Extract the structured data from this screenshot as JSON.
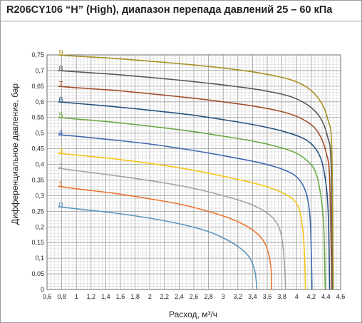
{
  "title": "R206CY106 “H” (High), диапазон перепада давлений 25 – 60 кПа",
  "chart_data": {
    "type": "line",
    "title": "R206CY106 “H” (High), диапазон перепада давлений 25 – 60 кПа",
    "xlabel": "Расход, м³/ч",
    "ylabel": "Дифференциальное давление, бар",
    "xlim": [
      0.6,
      4.6
    ],
    "ylim": [
      0,
      0.75
    ],
    "x_ticks": [
      "0,6",
      "0,8",
      "1",
      "1,2",
      "1,4",
      "1,6",
      "1,8",
      "2",
      "2,2",
      "2,4",
      "2,6",
      "2,8",
      "3",
      "3,2",
      "3,4",
      "3,6",
      "3,8",
      "4",
      "4,2",
      "4,4",
      "4,6"
    ],
    "y_ticks": [
      "0",
      "0,05",
      "0,1",
      "0,15",
      "0,2",
      "0,25",
      "0,3",
      "0,35",
      "0,4",
      "0,45",
      "0,5",
      "0,55",
      "0,6",
      "0,65",
      "0,7",
      "0,75"
    ],
    "grid": true,
    "series": [
      {
        "name": "0",
        "color": "#5b95bd",
        "points": [
          [
            0.75,
            0.265
          ],
          [
            1.0,
            0.258
          ],
          [
            1.5,
            0.245
          ],
          [
            2.0,
            0.228
          ],
          [
            2.5,
            0.205
          ],
          [
            2.8,
            0.185
          ],
          [
            3.0,
            0.165
          ],
          [
            3.2,
            0.138
          ],
          [
            3.35,
            0.105
          ],
          [
            3.43,
            0.06
          ],
          [
            3.46,
            0.0
          ]
        ]
      },
      {
        "name": "1",
        "color": "#ec7530",
        "points": [
          [
            0.75,
            0.33
          ],
          [
            1.0,
            0.322
          ],
          [
            1.5,
            0.308
          ],
          [
            2.0,
            0.29
          ],
          [
            2.5,
            0.268
          ],
          [
            3.0,
            0.235
          ],
          [
            3.3,
            0.205
          ],
          [
            3.5,
            0.17
          ],
          [
            3.6,
            0.13
          ],
          [
            3.65,
            0.07
          ],
          [
            3.66,
            0.0
          ]
        ]
      },
      {
        "name": "2",
        "color": "#a3a3a3",
        "points": [
          [
            0.75,
            0.388
          ],
          [
            1.0,
            0.38
          ],
          [
            1.5,
            0.365
          ],
          [
            2.0,
            0.348
          ],
          [
            2.5,
            0.328
          ],
          [
            3.0,
            0.3
          ],
          [
            3.4,
            0.27
          ],
          [
            3.65,
            0.235
          ],
          [
            3.78,
            0.185
          ],
          [
            3.83,
            0.1
          ],
          [
            3.85,
            0.0
          ]
        ]
      },
      {
        "name": "3",
        "color": "#f5c518",
        "points": [
          [
            0.75,
            0.435
          ],
          [
            1.0,
            0.43
          ],
          [
            1.5,
            0.418
          ],
          [
            2.0,
            0.403
          ],
          [
            2.5,
            0.385
          ],
          [
            3.0,
            0.362
          ],
          [
            3.5,
            0.335
          ],
          [
            3.8,
            0.31
          ],
          [
            4.0,
            0.275
          ],
          [
            4.08,
            0.2
          ],
          [
            4.11,
            0.1
          ],
          [
            4.12,
            0.0
          ]
        ]
      },
      {
        "name": "4",
        "color": "#3f68b0",
        "points": [
          [
            0.75,
            0.495
          ],
          [
            1.0,
            0.49
          ],
          [
            1.5,
            0.478
          ],
          [
            2.0,
            0.465
          ],
          [
            2.5,
            0.448
          ],
          [
            3.0,
            0.428
          ],
          [
            3.5,
            0.405
          ],
          [
            3.8,
            0.385
          ],
          [
            4.0,
            0.36
          ],
          [
            4.12,
            0.315
          ],
          [
            4.18,
            0.24
          ],
          [
            4.2,
            0.12
          ],
          [
            4.21,
            0.0
          ]
        ]
      },
      {
        "name": "5",
        "color": "#6aaa45",
        "points": [
          [
            0.75,
            0.55
          ],
          [
            1.0,
            0.545
          ],
          [
            1.5,
            0.535
          ],
          [
            2.0,
            0.522
          ],
          [
            2.5,
            0.508
          ],
          [
            3.0,
            0.49
          ],
          [
            3.5,
            0.47
          ],
          [
            3.9,
            0.445
          ],
          [
            4.1,
            0.42
          ],
          [
            4.25,
            0.38
          ],
          [
            4.33,
            0.3
          ],
          [
            4.37,
            0.2
          ],
          [
            4.39,
            0.0
          ]
        ]
      },
      {
        "name": "6",
        "color": "#25527d",
        "points": [
          [
            0.75,
            0.6
          ],
          [
            1.0,
            0.595
          ],
          [
            1.5,
            0.585
          ],
          [
            2.0,
            0.573
          ],
          [
            2.5,
            0.56
          ],
          [
            3.0,
            0.543
          ],
          [
            3.5,
            0.523
          ],
          [
            3.9,
            0.5
          ],
          [
            4.15,
            0.475
          ],
          [
            4.3,
            0.435
          ],
          [
            4.38,
            0.37
          ],
          [
            4.43,
            0.25
          ],
          [
            4.45,
            0.0
          ]
        ]
      },
      {
        "name": "7",
        "color": "#a24f2a",
        "points": [
          [
            0.75,
            0.65
          ],
          [
            1.0,
            0.645
          ],
          [
            1.5,
            0.637
          ],
          [
            2.0,
            0.626
          ],
          [
            2.5,
            0.614
          ],
          [
            3.0,
            0.6
          ],
          [
            3.5,
            0.583
          ],
          [
            3.9,
            0.562
          ],
          [
            4.15,
            0.535
          ],
          [
            4.3,
            0.5
          ],
          [
            4.4,
            0.44
          ],
          [
            4.45,
            0.35
          ],
          [
            4.48,
            0.0
          ]
        ]
      },
      {
        "name": "8",
        "color": "#5a5a5a",
        "points": [
          [
            0.75,
            0.7
          ],
          [
            1.0,
            0.696
          ],
          [
            1.5,
            0.688
          ],
          [
            2.0,
            0.678
          ],
          [
            2.5,
            0.667
          ],
          [
            3.0,
            0.654
          ],
          [
            3.5,
            0.638
          ],
          [
            3.9,
            0.618
          ],
          [
            4.15,
            0.59
          ],
          [
            4.32,
            0.55
          ],
          [
            4.42,
            0.49
          ],
          [
            4.47,
            0.4
          ],
          [
            4.49,
            0.0
          ]
        ]
      },
      {
        "name": "9",
        "color": "#a99122",
        "points": [
          [
            0.75,
            0.75
          ],
          [
            1.0,
            0.746
          ],
          [
            1.5,
            0.739
          ],
          [
            2.0,
            0.73
          ],
          [
            2.5,
            0.72
          ],
          [
            3.0,
            0.708
          ],
          [
            3.5,
            0.692
          ],
          [
            3.9,
            0.672
          ],
          [
            4.15,
            0.645
          ],
          [
            4.33,
            0.6
          ],
          [
            4.43,
            0.54
          ],
          [
            4.48,
            0.45
          ],
          [
            4.5,
            0.0
          ]
        ]
      }
    ]
  }
}
